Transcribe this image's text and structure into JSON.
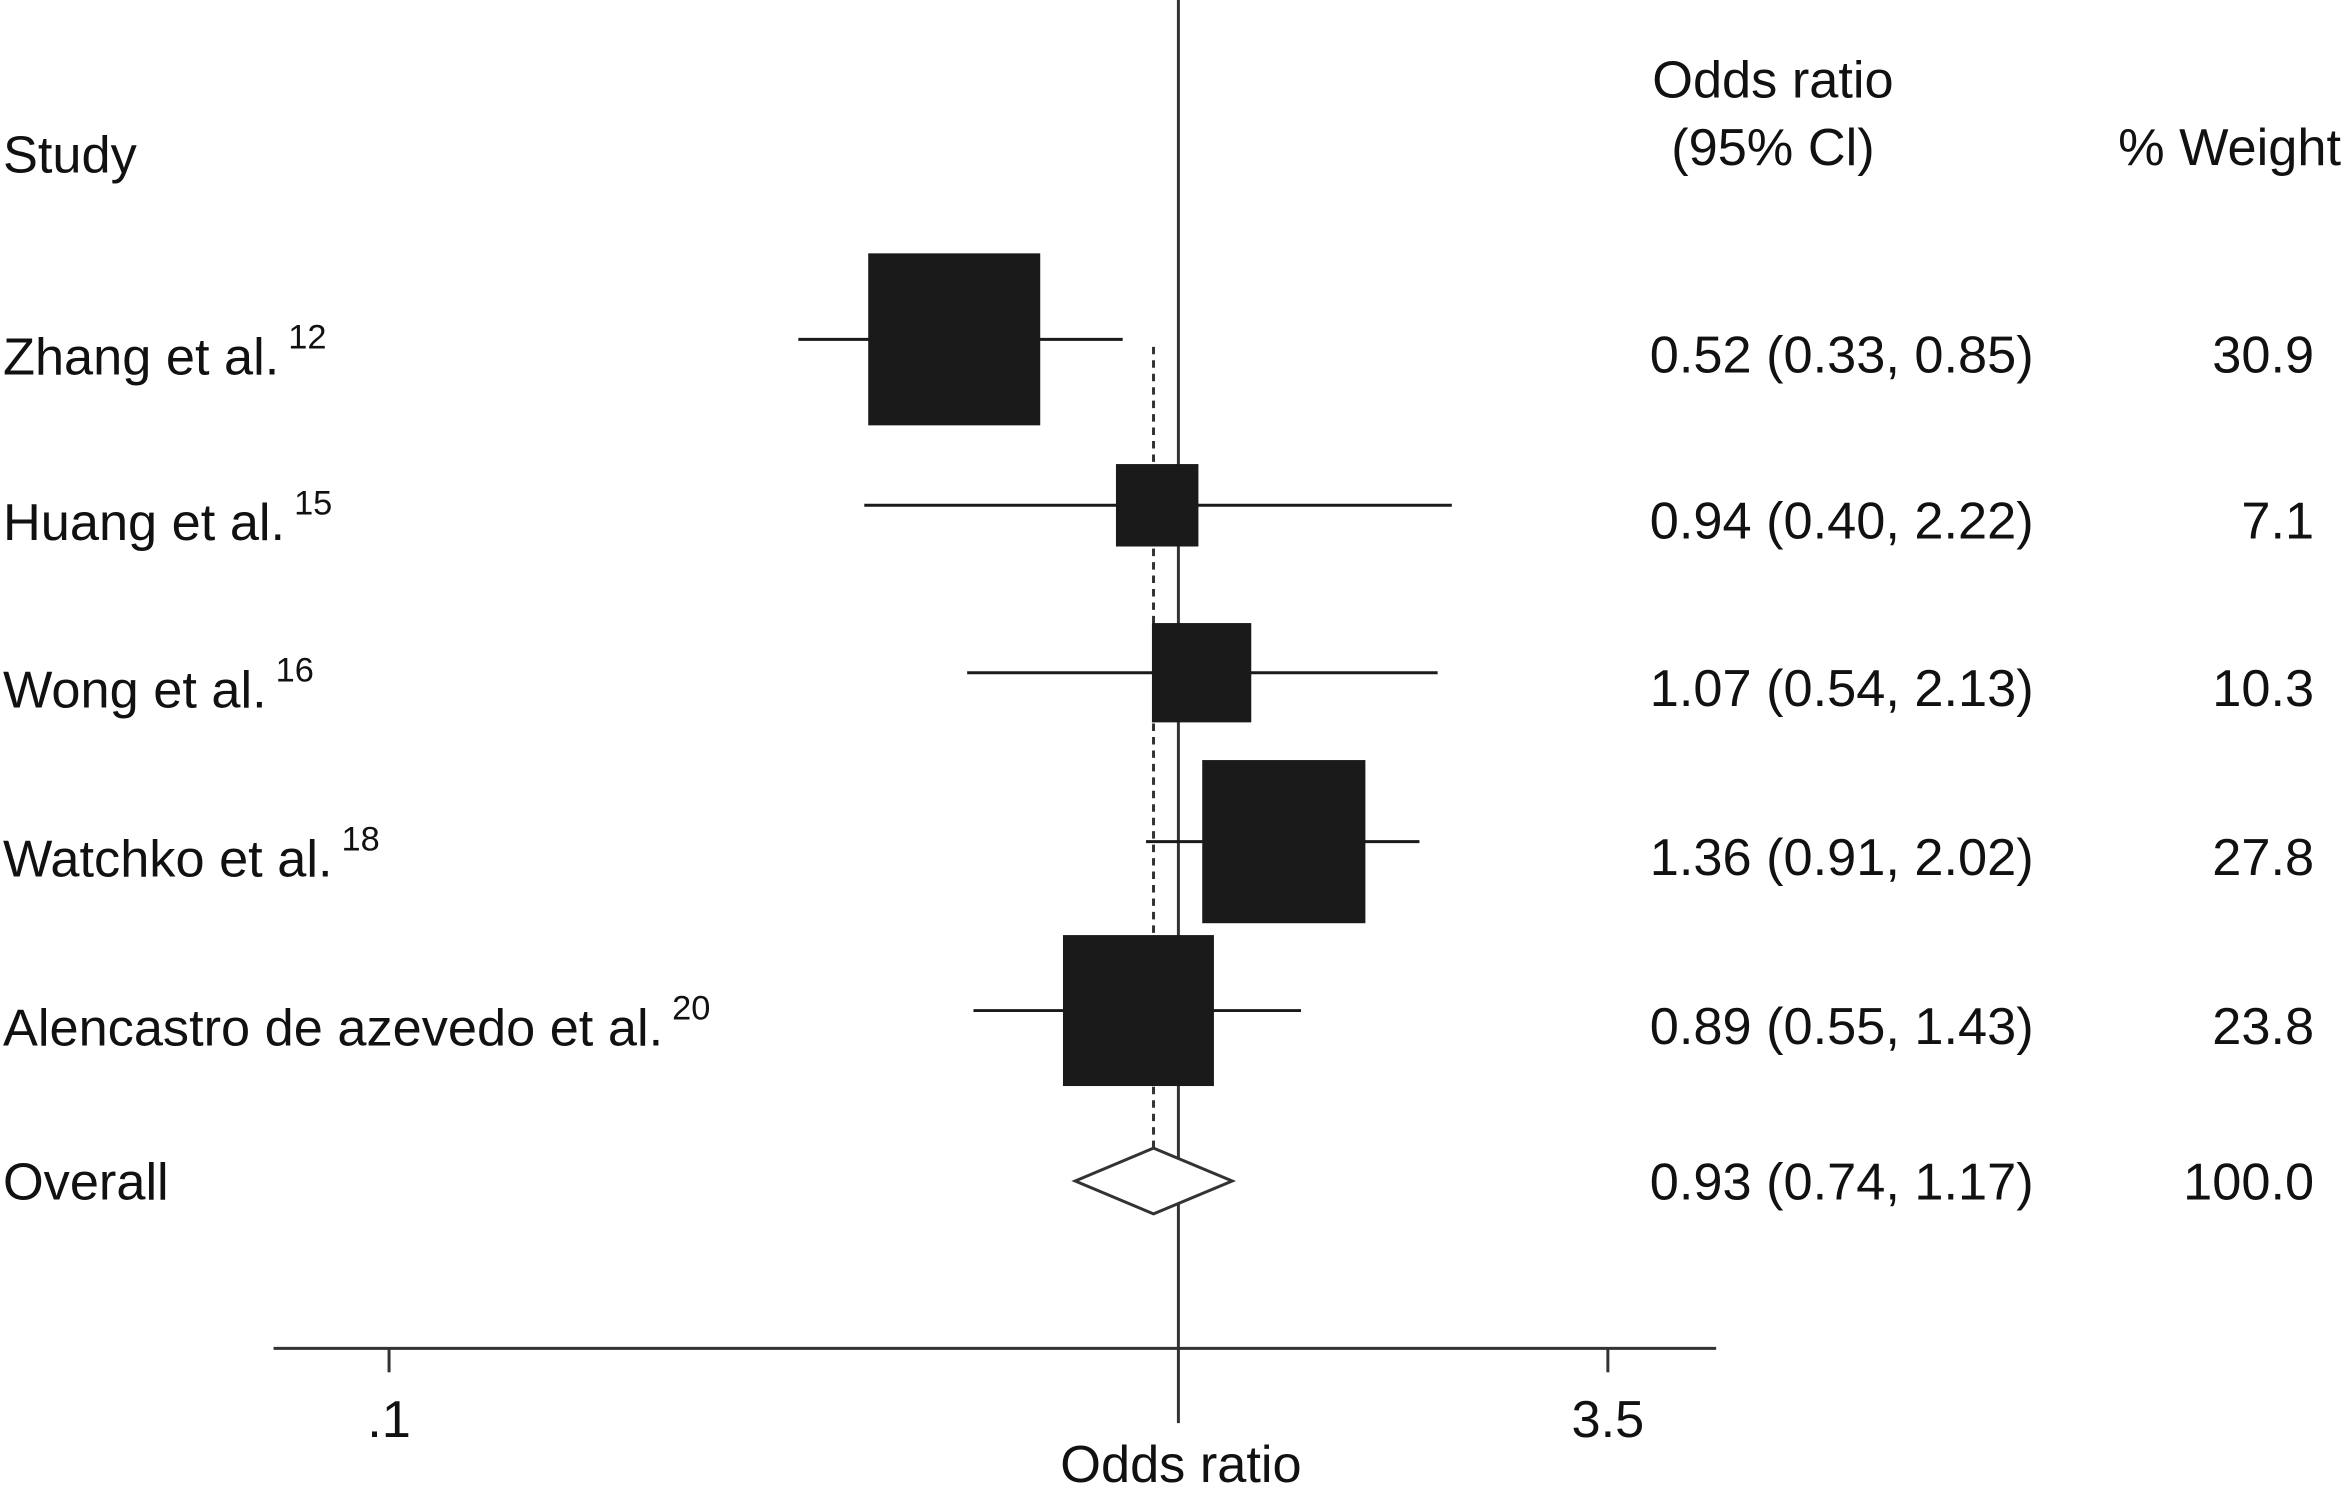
{
  "chart_data": {
    "type": "forest",
    "column_headers": {
      "study": "Study",
      "estimate": [
        "Odds ratio",
        "(95% Cl)"
      ],
      "weight": "% Weight"
    },
    "categories": [
      "Zhang et al.",
      "Huang et al.",
      "Wong et al.",
      "Watchko et al.",
      "Alencastro de azevedo et al."
    ],
    "refs": [
      "12",
      "15",
      "16",
      "18",
      "20"
    ],
    "values": [
      0.52,
      0.94,
      1.07,
      1.36,
      0.89
    ],
    "lower": [
      0.33,
      0.4,
      0.54,
      0.91,
      0.55
    ],
    "upper": [
      0.85,
      2.22,
      2.13,
      2.02,
      1.43
    ],
    "ci_labels": [
      "0.52 (0.33, 0.85)",
      "0.94 (0.40, 2.22)",
      "1.07 (0.54, 2.13)",
      "1.36 (0.91, 2.02)",
      "0.89 (0.55, 1.43)"
    ],
    "weights": [
      30.9,
      7.1,
      10.3,
      27.8,
      23.8
    ],
    "overall": {
      "name": "Overall",
      "value": 0.93,
      "lower": 0.74,
      "upper": 1.17,
      "ci_label": "0.93 (0.74, 1.17)",
      "weight": 100,
      "weight_label": "100.0"
    },
    "x_label": "Odds ratio",
    "xscale": "log",
    "xlim": [
      0.0714,
      4.8
    ],
    "xticks": [
      {
        "value": 0.1,
        "label": ".1"
      },
      3.5
    ],
    "null_line": 1,
    "color": "#1a1a1a"
  }
}
